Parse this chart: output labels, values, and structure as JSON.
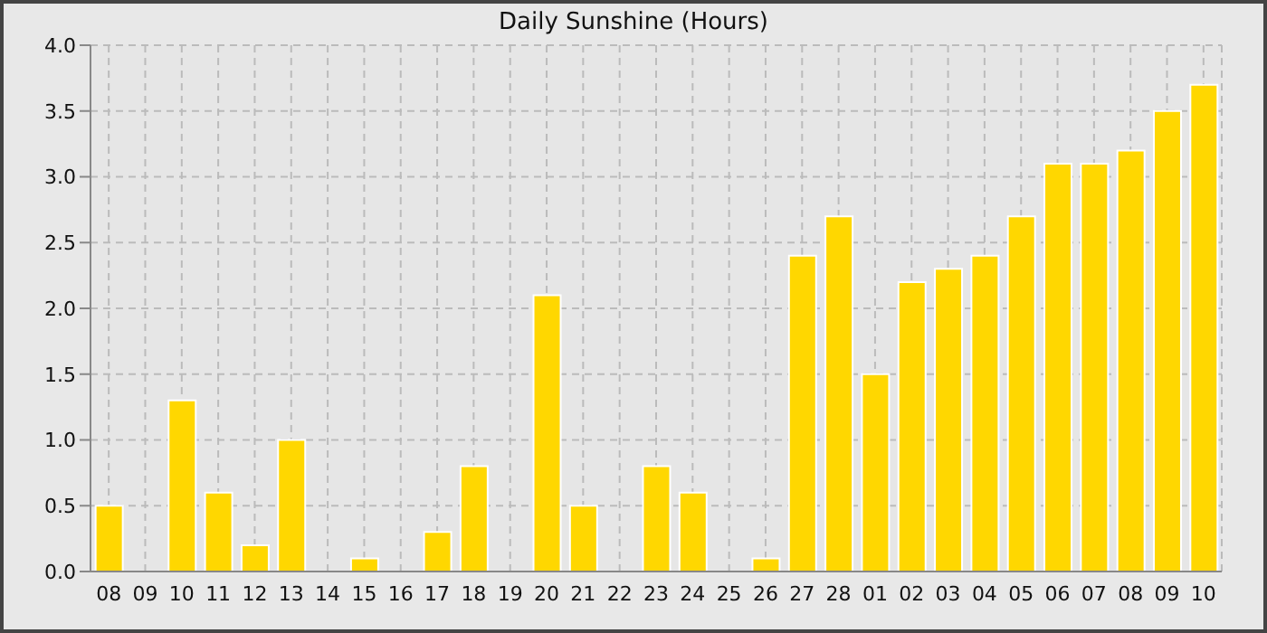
{
  "chart_data": {
    "type": "bar",
    "title": "Daily Sunshine (Hours)",
    "categories": [
      "08",
      "09",
      "10",
      "11",
      "12",
      "13",
      "14",
      "15",
      "16",
      "17",
      "18",
      "19",
      "20",
      "21",
      "22",
      "23",
      "24",
      "25",
      "26",
      "27",
      "28",
      "01",
      "02",
      "03",
      "04",
      "05",
      "06",
      "07",
      "08",
      "09",
      "10"
    ],
    "values": [
      0.5,
      0,
      1.3,
      0.6,
      0.2,
      1.0,
      0,
      0.1,
      0,
      0.3,
      0.8,
      0,
      2.1,
      0.5,
      0,
      0.8,
      0.6,
      0,
      0.1,
      2.4,
      2.7,
      1.5,
      2.2,
      2.3,
      2.4,
      2.7,
      3.1,
      3.1,
      3.2,
      3.5,
      3.7
    ],
    "color": "#ffd700",
    "ylim": [
      0,
      4
    ],
    "yticks": [
      {
        "value": 0,
        "label": "0.0"
      },
      0.5,
      {
        "value": 1,
        "label": "1.0"
      },
      1.5,
      {
        "value": 2,
        "label": "2.0"
      },
      2.5,
      {
        "value": 3,
        "label": "3.0"
      },
      3.5,
      {
        "value": 4,
        "label": "4.0"
      }
    ],
    "grid": true
  }
}
